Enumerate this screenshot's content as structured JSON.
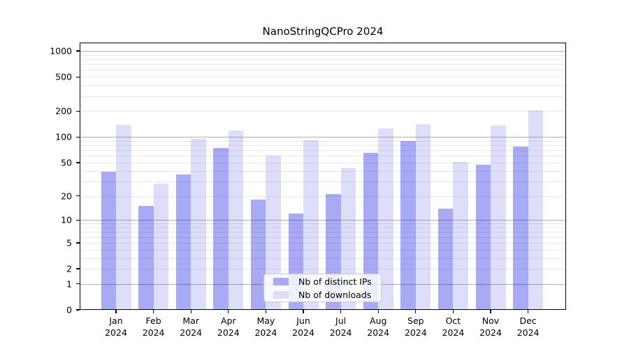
{
  "chart_data": {
    "type": "bar",
    "title": "NanoStringQCPro 2024",
    "categories": [
      "Jan",
      "Feb",
      "Mar",
      "Apr",
      "May",
      "Jun",
      "Jul",
      "Aug",
      "Sep",
      "Oct",
      "Nov",
      "Dec"
    ],
    "year_label": "2024",
    "series": [
      {
        "name": "Nb of distinct IPs",
        "color": "#a8aaf5",
        "values": [
          39,
          15,
          36,
          74,
          18,
          12,
          21,
          65,
          89,
          14,
          47,
          77
        ]
      },
      {
        "name": "Nb of downloads",
        "color": "#dcdefa",
        "values": [
          138,
          28,
          95,
          118,
          60,
          91,
          43,
          126,
          140,
          51,
          135,
          205
        ]
      }
    ],
    "yscale": "log10(value+1)",
    "y_tick_labels": [
      0,
      1,
      2,
      5,
      10,
      20,
      50,
      100,
      200,
      500,
      1000
    ],
    "y_major_gridlines": [
      1,
      10,
      100,
      1000
    ],
    "ylim": [
      0,
      1253
    ],
    "grid": true,
    "legend_position": "lower center"
  }
}
